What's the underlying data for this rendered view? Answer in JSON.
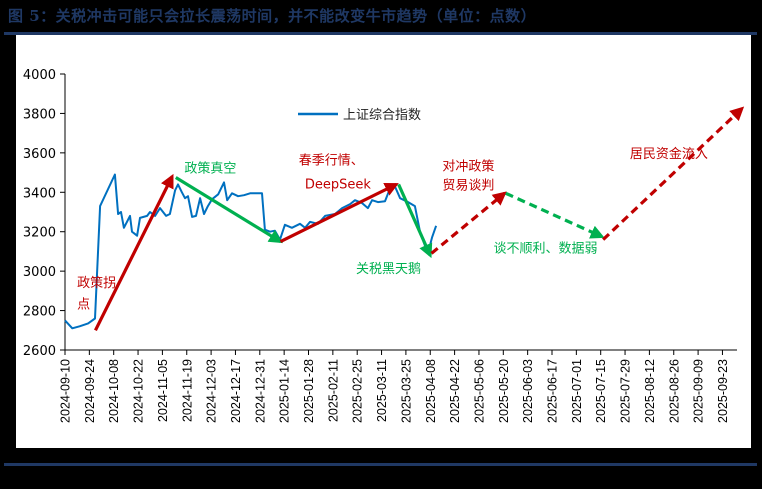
{
  "title": "图 5：关税冲击可能只会拉长震荡时间，并不能改变牛市趋势（单位：点数）",
  "colors": {
    "title": "#1f3864",
    "series": "#0070c0",
    "red": "#c00000",
    "green": "#00b050"
  },
  "chart_data": {
    "type": "line",
    "title": "关税冲击可能只会拉长震荡时间，并不能改变牛市趋势（单位：点数）",
    "xlabel": "",
    "ylabel": "",
    "ylim": [
      2600,
      4000
    ],
    "yticks": [
      2600,
      2800,
      3000,
      3200,
      3400,
      3600,
      3800,
      4000
    ],
    "grid": false,
    "legend_position": "top-center",
    "x_tick_labels": [
      "2024-09-10",
      "2024-09-24",
      "2024-10-08",
      "2024-10-22",
      "2024-11-05",
      "2024-11-19",
      "2024-12-03",
      "2024-12-17",
      "2024-12-31",
      "2025-01-14",
      "2025-01-28",
      "2025-02-11",
      "2025-02-25",
      "2025-03-11",
      "2025-03-25",
      "2025-04-08",
      "2025-04-22",
      "2025-05-06",
      "2025-05-20",
      "2025-06-03",
      "2025-06-17",
      "2025-07-01",
      "2025-07-15",
      "2025-07-29",
      "2025-08-12",
      "2025-08-26",
      "2025-09-09",
      "2025-09-23"
    ],
    "series": [
      {
        "name": "上证综合指数",
        "color": "#0070c0",
        "points": [
          [
            0.0,
            2750
          ],
          [
            0.3,
            2710
          ],
          [
            0.6,
            2720
          ],
          [
            0.95,
            2735
          ],
          [
            1.23,
            2760
          ],
          [
            1.44,
            3330
          ],
          [
            2.05,
            3490
          ],
          [
            2.18,
            3290
          ],
          [
            2.3,
            3300
          ],
          [
            2.42,
            3220
          ],
          [
            2.67,
            3280
          ],
          [
            2.75,
            3200
          ],
          [
            2.96,
            3180
          ],
          [
            3.08,
            3270
          ],
          [
            3.37,
            3280
          ],
          [
            3.49,
            3300
          ],
          [
            3.7,
            3280
          ],
          [
            3.9,
            3320
          ],
          [
            4.15,
            3280
          ],
          [
            4.31,
            3290
          ],
          [
            4.52,
            3410
          ],
          [
            4.64,
            3440
          ],
          [
            4.8,
            3400
          ],
          [
            4.93,
            3370
          ],
          [
            5.05,
            3380
          ],
          [
            5.22,
            3275
          ],
          [
            5.38,
            3280
          ],
          [
            5.55,
            3370
          ],
          [
            5.71,
            3290
          ],
          [
            5.87,
            3330
          ],
          [
            6.04,
            3365
          ],
          [
            6.29,
            3390
          ],
          [
            6.53,
            3450
          ],
          [
            6.66,
            3360
          ],
          [
            6.86,
            3395
          ],
          [
            7.11,
            3380
          ],
          [
            7.35,
            3385
          ],
          [
            7.6,
            3395
          ],
          [
            7.93,
            3395
          ],
          [
            8.09,
            3395
          ],
          [
            8.21,
            3210
          ],
          [
            8.42,
            3200
          ],
          [
            8.62,
            3205
          ],
          [
            8.83,
            3160
          ],
          [
            9.03,
            3235
          ],
          [
            9.32,
            3220
          ],
          [
            9.65,
            3240
          ],
          [
            9.86,
            3220
          ],
          [
            10.06,
            3250
          ],
          [
            10.39,
            3240
          ],
          [
            10.68,
            3280
          ],
          [
            11.09,
            3290
          ],
          [
            11.38,
            3320
          ],
          [
            11.71,
            3340
          ],
          [
            11.91,
            3360
          ],
          [
            12.2,
            3345
          ],
          [
            12.44,
            3320
          ],
          [
            12.61,
            3360
          ],
          [
            12.85,
            3350
          ],
          [
            13.14,
            3355
          ],
          [
            13.35,
            3420
          ],
          [
            13.55,
            3430
          ],
          [
            13.76,
            3370
          ],
          [
            14.09,
            3350
          ],
          [
            14.37,
            3330
          ],
          [
            14.58,
            3200
          ],
          [
            14.78,
            3130
          ],
          [
            14.91,
            3095
          ],
          [
            15.07,
            3170
          ],
          [
            15.24,
            3230
          ]
        ]
      }
    ],
    "arrows": [
      {
        "label": "政策拐点",
        "style": "solid",
        "color": "#c00000",
        "from": [
          1.25,
          2700
        ],
        "to": [
          4.4,
          3480
        ]
      },
      {
        "label": "政策真空",
        "style": "solid",
        "color": "#00b050",
        "from": [
          4.55,
          3475
        ],
        "to": [
          8.85,
          3150
        ]
      },
      {
        "label": "春季行情、DeepSeek",
        "style": "solid",
        "color": "#c00000",
        "from": [
          8.85,
          3150
        ],
        "to": [
          13.6,
          3440
        ]
      },
      {
        "label": "关税黑天鹅",
        "style": "solid",
        "color": "#00b050",
        "from": [
          13.7,
          3440
        ],
        "to": [
          15.0,
          3080
        ]
      },
      {
        "label": "对冲政策 贸易谈判",
        "style": "dashed",
        "color": "#c00000",
        "from": [
          15.05,
          3090
        ],
        "to": [
          18.05,
          3395
        ]
      },
      {
        "label": "谈不顺利、数据弱",
        "style": "dashed",
        "color": "#00b050",
        "from": [
          18.1,
          3395
        ],
        "to": [
          22.05,
          3175
        ]
      },
      {
        "label": "居民资金流入",
        "style": "dashed",
        "color": "#c00000",
        "from": [
          22.1,
          3160
        ],
        "to": [
          27.8,
          3825
        ]
      }
    ],
    "annotations": [
      {
        "text": "政策拐",
        "x": 0.5,
        "y": 2920,
        "color": "#c00000"
      },
      {
        "text": "点",
        "x": 0.5,
        "y": 2810,
        "color": "#c00000"
      },
      {
        "text": "政策真空",
        "x": 4.9,
        "y": 3500,
        "color": "#00b050"
      },
      {
        "text": "春季行情、",
        "x": 9.6,
        "y": 3540,
        "color": "#c00000"
      },
      {
        "text": "DeepSeek",
        "x": 9.85,
        "y": 3420,
        "color": "#c00000"
      },
      {
        "text": "关税黑天鹅",
        "x": 11.95,
        "y": 2990,
        "color": "#00b050"
      },
      {
        "text": "对冲政策",
        "x": 15.5,
        "y": 3510,
        "color": "#c00000"
      },
      {
        "text": "贸易谈判",
        "x": 15.5,
        "y": 3415,
        "color": "#c00000"
      },
      {
        "text": "谈不顺利、数据弱",
        "x": 17.6,
        "y": 3095,
        "color": "#00b050"
      },
      {
        "text": "居民资金流入",
        "x": 23.2,
        "y": 3575,
        "color": "#c00000"
      }
    ]
  },
  "legend": {
    "label": "上证综合指数"
  }
}
